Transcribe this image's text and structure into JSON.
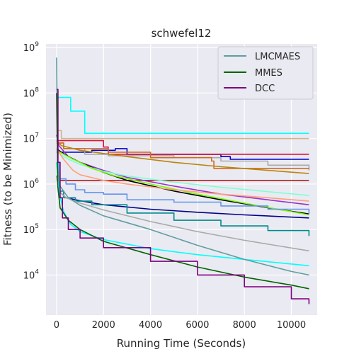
{
  "chart_data": {
    "type": "line",
    "title": "schwefel12",
    "xlabel": "Running Time (Seconds)",
    "ylabel": "Fitness (to be Minimized)",
    "xlim": [
      -450,
      11100
    ],
    "ylim_log10": [
      3.12,
      9.08
    ],
    "y_scale": "log",
    "grid": true,
    "legend_position": "top-right",
    "x_ticks": [
      "0",
      "2000",
      "4000",
      "6000",
      "8000",
      "10000"
    ],
    "x_tick_values": [
      0,
      2000,
      4000,
      6000,
      8000,
      10000
    ],
    "y_ticks": [
      {
        "base": "10",
        "exp": "4",
        "value": 10000
      },
      {
        "base": "10",
        "exp": "5",
        "value": 100000
      },
      {
        "base": "10",
        "exp": "6",
        "value": 1000000
      },
      {
        "base": "10",
        "exp": "7",
        "value": 10000000
      },
      {
        "base": "10",
        "exp": "8",
        "value": 100000000
      },
      {
        "base": "10",
        "exp": "9",
        "value": 1000000000
      }
    ],
    "legend": [
      {
        "label": "LMCMAES",
        "color": "#5f9ea0"
      },
      {
        "label": "MMES",
        "color": "#006400"
      },
      {
        "label": "DCC",
        "color": "#800080"
      }
    ],
    "series": [
      {
        "name": "LMCMAES",
        "color": "#5f9ea0",
        "kind": "smooth",
        "points": [
          [
            0,
            600000000
          ],
          [
            50,
            2000000
          ],
          [
            150,
            900000
          ],
          [
            500,
            500000
          ],
          [
            1000,
            340000
          ],
          [
            2000,
            200000
          ],
          [
            4000,
            100000
          ],
          [
            6000,
            45000
          ],
          [
            8000,
            22000
          ],
          [
            10000,
            12000
          ],
          [
            10750,
            10000
          ]
        ]
      },
      {
        "name": "MMES",
        "color": "#006400",
        "kind": "smooth",
        "points": [
          [
            0,
            100000000
          ],
          [
            50,
            900000
          ],
          [
            150,
            300000
          ],
          [
            500,
            160000
          ],
          [
            1000,
            100000
          ],
          [
            2000,
            55000
          ],
          [
            4000,
            28000
          ],
          [
            6000,
            15000
          ],
          [
            8000,
            9000
          ],
          [
            10000,
            6000
          ],
          [
            10750,
            5000
          ]
        ]
      },
      {
        "name": "DCC",
        "color": "#800080",
        "kind": "stairs",
        "points": [
          [
            0,
            120000000
          ],
          [
            60,
            3000000
          ],
          [
            150,
            500000
          ],
          [
            250,
            180000
          ],
          [
            500,
            100000
          ],
          [
            1000,
            65000
          ],
          [
            2000,
            40000
          ],
          [
            4000,
            20000
          ],
          [
            6000,
            10000
          ],
          [
            8000,
            5500
          ],
          [
            10000,
            3000
          ],
          [
            10750,
            2300
          ]
        ]
      },
      {
        "kind": "stairs",
        "color": "#00ffff",
        "points": [
          [
            0,
            80000000
          ],
          [
            100,
            80000000
          ],
          [
            600,
            40000000
          ],
          [
            1200,
            13000000
          ],
          [
            10750,
            13000000
          ]
        ]
      },
      {
        "kind": "stairs",
        "color": "#0000cd",
        "points": [
          [
            0,
            5000000
          ],
          [
            200,
            5000000
          ],
          [
            1500,
            5500000
          ],
          [
            2500,
            6000000
          ],
          [
            3000,
            4500000
          ],
          [
            7000,
            4000000
          ],
          [
            7400,
            3500000
          ],
          [
            10750,
            3500000
          ]
        ]
      },
      {
        "kind": "stairs",
        "color": "#d2b48c",
        "points": [
          [
            0,
            15000000
          ],
          [
            200,
            10000000
          ],
          [
            10750,
            10000000
          ]
        ]
      },
      {
        "kind": "stairs",
        "color": "#dc143c",
        "points": [
          [
            0,
            9000000
          ],
          [
            300,
            9000000
          ],
          [
            2000,
            6500000
          ],
          [
            2200,
            4500000
          ],
          [
            10750,
            4500000
          ]
        ]
      },
      {
        "kind": "stairs",
        "color": "#a9a9a9",
        "points": [
          [
            0,
            8000000
          ],
          [
            300,
            6000000
          ],
          [
            1200,
            4500000
          ],
          [
            2200,
            4200000
          ],
          [
            5000,
            3800000
          ],
          [
            7000,
            3200000
          ],
          [
            9000,
            2600000
          ],
          [
            10750,
            2000000
          ]
        ]
      },
      {
        "kind": "stairs",
        "color": "#d2691e",
        "points": [
          [
            0,
            8000000
          ],
          [
            300,
            6000000
          ],
          [
            2200,
            5000000
          ],
          [
            4000,
            3800000
          ],
          [
            6600,
            3200000
          ],
          [
            6700,
            2200000
          ],
          [
            8000,
            2200000
          ],
          [
            10750,
            2200000
          ]
        ]
      },
      {
        "kind": "stairs",
        "color": "#b22222",
        "points": [
          [
            0,
            1200000
          ],
          [
            10750,
            1200000
          ]
        ]
      },
      {
        "kind": "smooth",
        "color": "#b8860b",
        "points": [
          [
            0,
            9000000
          ],
          [
            200,
            7000000
          ],
          [
            1000,
            5500000
          ],
          [
            3000,
            4000000
          ],
          [
            5000,
            3000000
          ],
          [
            7000,
            2400000
          ],
          [
            9000,
            2000000
          ],
          [
            10750,
            1700000
          ]
        ]
      },
      {
        "kind": "smooth",
        "color": "#9932cc",
        "points": [
          [
            0,
            12000000
          ],
          [
            100,
            7000000
          ],
          [
            500,
            4000000
          ],
          [
            1000,
            3000000
          ],
          [
            2000,
            2000000
          ],
          [
            3000,
            1400000
          ],
          [
            5000,
            900000
          ],
          [
            7000,
            600000
          ],
          [
            9000,
            450000
          ],
          [
            10750,
            350000
          ]
        ]
      },
      {
        "kind": "smooth",
        "color": "#000000",
        "points": [
          [
            0,
            6000000
          ],
          [
            200,
            5000000
          ],
          [
            500,
            4000000
          ],
          [
            1000,
            3000000
          ],
          [
            2000,
            1800000
          ],
          [
            3000,
            1200000
          ],
          [
            5000,
            700000
          ],
          [
            7000,
            450000
          ],
          [
            9000,
            300000
          ],
          [
            10750,
            220000
          ]
        ]
      },
      {
        "kind": "smooth",
        "color": "#7fffd4",
        "points": [
          [
            0,
            5000000
          ],
          [
            500,
            3500000
          ],
          [
            1000,
            2700000
          ],
          [
            2000,
            1900000
          ],
          [
            3000,
            1500000
          ],
          [
            5000,
            1100000
          ],
          [
            7000,
            850000
          ],
          [
            9000,
            680000
          ],
          [
            10750,
            560000
          ]
        ]
      },
      {
        "kind": "smooth",
        "color": "#7cfc00",
        "points": [
          [
            0,
            5500000
          ],
          [
            300,
            4500000
          ],
          [
            700,
            3500000
          ],
          [
            1000,
            3000000
          ],
          [
            1500,
            2200000
          ],
          [
            2500,
            1500000
          ],
          [
            4000,
            1000000
          ],
          [
            6000,
            600000
          ],
          [
            8000,
            380000
          ],
          [
            10750,
            210000
          ]
        ]
      },
      {
        "kind": "smooth",
        "color": "#ffa07a",
        "points": [
          [
            0,
            6000000
          ],
          [
            300,
            3500000
          ],
          [
            700,
            2000000
          ],
          [
            1000,
            1600000
          ],
          [
            2000,
            1200000
          ],
          [
            3000,
            1000000
          ],
          [
            5000,
            750000
          ],
          [
            7000,
            600000
          ],
          [
            9000,
            500000
          ],
          [
            10750,
            420000
          ]
        ]
      },
      {
        "kind": "stairs",
        "color": "#6495ed",
        "points": [
          [
            0,
            3000000
          ],
          [
            100,
            1300000
          ],
          [
            400,
            1000000
          ],
          [
            800,
            750000
          ],
          [
            1200,
            650000
          ],
          [
            2000,
            600000
          ],
          [
            3000,
            450000
          ],
          [
            5000,
            400000
          ],
          [
            7000,
            330000
          ],
          [
            9000,
            280000
          ],
          [
            10750,
            220000
          ]
        ]
      },
      {
        "kind": "smooth",
        "color": "#00008b",
        "points": [
          [
            0,
            1500000
          ],
          [
            100,
            700000
          ],
          [
            400,
            500000
          ],
          [
            1000,
            430000
          ],
          [
            2000,
            350000
          ],
          [
            4000,
            280000
          ],
          [
            6000,
            240000
          ],
          [
            8000,
            210000
          ],
          [
            10750,
            180000
          ]
        ]
      },
      {
        "kind": "stairs",
        "color": "#008b8b",
        "points": [
          [
            0,
            1500000
          ],
          [
            100,
            700000
          ],
          [
            300,
            500000
          ],
          [
            800,
            420000
          ],
          [
            1500,
            350000
          ],
          [
            3000,
            230000
          ],
          [
            5000,
            160000
          ],
          [
            7000,
            120000
          ],
          [
            9000,
            95000
          ],
          [
            10750,
            72000
          ]
        ]
      },
      {
        "kind": "smooth",
        "color": "#a9a9a9",
        "points": [
          [
            0,
            1500000
          ],
          [
            100,
            700000
          ],
          [
            400,
            500000
          ],
          [
            1000,
            380000
          ],
          [
            2000,
            270000
          ],
          [
            4000,
            150000
          ],
          [
            6000,
            90000
          ],
          [
            8000,
            58000
          ],
          [
            10750,
            34000
          ]
        ]
      },
      {
        "kind": "smooth",
        "color": "#00ffff",
        "points": [
          [
            0,
            3000000
          ],
          [
            100,
            700000
          ],
          [
            300,
            250000
          ],
          [
            600,
            130000
          ],
          [
            1000,
            90000
          ],
          [
            2000,
            60000
          ],
          [
            4000,
            38000
          ],
          [
            6000,
            28000
          ],
          [
            8000,
            22000
          ],
          [
            10750,
            16000
          ]
        ]
      }
    ]
  }
}
